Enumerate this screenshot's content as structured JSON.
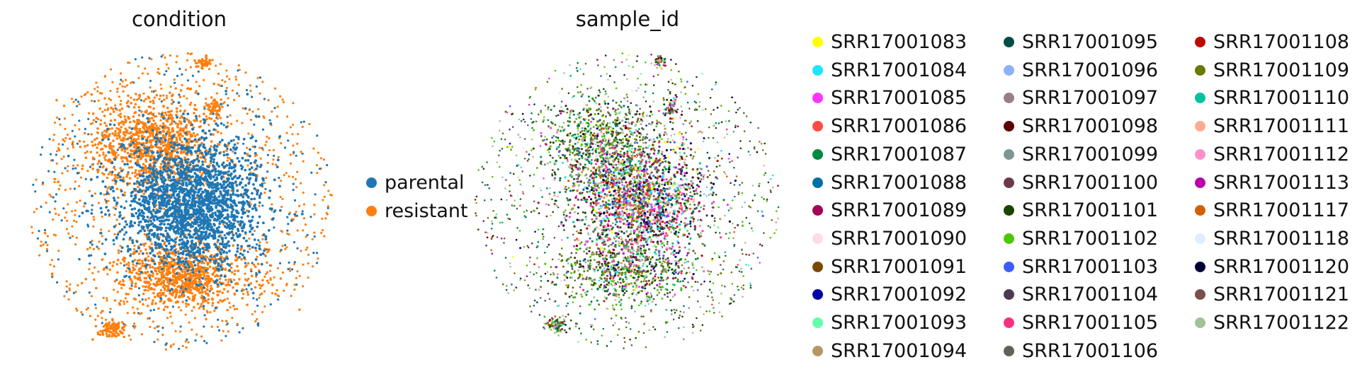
{
  "chart_data": [
    {
      "type": "scatter",
      "title": "condition",
      "xlabel": "",
      "ylabel": "",
      "frame": "none",
      "legend_position": "right",
      "series": [
        {
          "name": "parental",
          "color": "#1f77b4"
        },
        {
          "name": "resistant",
          "color": "#ff7f0e"
        }
      ]
    },
    {
      "type": "scatter",
      "title": "sample_id",
      "xlabel": "",
      "ylabel": "",
      "frame": "none",
      "legend_position": "right",
      "legend_columns": 3,
      "series": [
        {
          "name": "SRR17001083",
          "color": "#ffff00"
        },
        {
          "name": "SRR17001084",
          "color": "#1ce6ff"
        },
        {
          "name": "SRR17001085",
          "color": "#ff34ff"
        },
        {
          "name": "SRR17001086",
          "color": "#ff4a46"
        },
        {
          "name": "SRR17001087",
          "color": "#008941"
        },
        {
          "name": "SRR17001088",
          "color": "#006fa6"
        },
        {
          "name": "SRR17001089",
          "color": "#a30059"
        },
        {
          "name": "SRR17001090",
          "color": "#ffdbe5"
        },
        {
          "name": "SRR17001091",
          "color": "#7a4900"
        },
        {
          "name": "SRR17001092",
          "color": "#0000a6"
        },
        {
          "name": "SRR17001093",
          "color": "#63ffac"
        },
        {
          "name": "SRR17001094",
          "color": "#b79762"
        },
        {
          "name": "SRR17001095",
          "color": "#004d43"
        },
        {
          "name": "SRR17001096",
          "color": "#8fb0ff"
        },
        {
          "name": "SRR17001097",
          "color": "#997d87"
        },
        {
          "name": "SRR17001098",
          "color": "#5a0007"
        },
        {
          "name": "SRR17001099",
          "color": "#809693"
        },
        {
          "name": "SRR17001100",
          "color": "#6a3a4c"
        },
        {
          "name": "SRR17001101",
          "color": "#1b4400"
        },
        {
          "name": "SRR17001102",
          "color": "#4fc601"
        },
        {
          "name": "SRR17001103",
          "color": "#3b5dff"
        },
        {
          "name": "SRR17001104",
          "color": "#4a3b53"
        },
        {
          "name": "SRR17001105",
          "color": "#ff2f80"
        },
        {
          "name": "SRR17001106",
          "color": "#61615a"
        },
        {
          "name": "SRR17001108",
          "color": "#ba0900"
        },
        {
          "name": "SRR17001109",
          "color": "#6b7900"
        },
        {
          "name": "SRR17001110",
          "color": "#00c2a0"
        },
        {
          "name": "SRR17001111",
          "color": "#ffaa92"
        },
        {
          "name": "SRR17001112",
          "color": "#ff90c9"
        },
        {
          "name": "SRR17001113",
          "color": "#b903aa"
        },
        {
          "name": "SRR17001117",
          "color": "#d16100"
        },
        {
          "name": "SRR17001118",
          "color": "#ddefff"
        },
        {
          "name": "SRR17001120",
          "color": "#000035"
        },
        {
          "name": "SRR17001121",
          "color": "#7b4f4b"
        },
        {
          "name": "SRR17001122",
          "color": "#a1c299"
        }
      ]
    }
  ]
}
